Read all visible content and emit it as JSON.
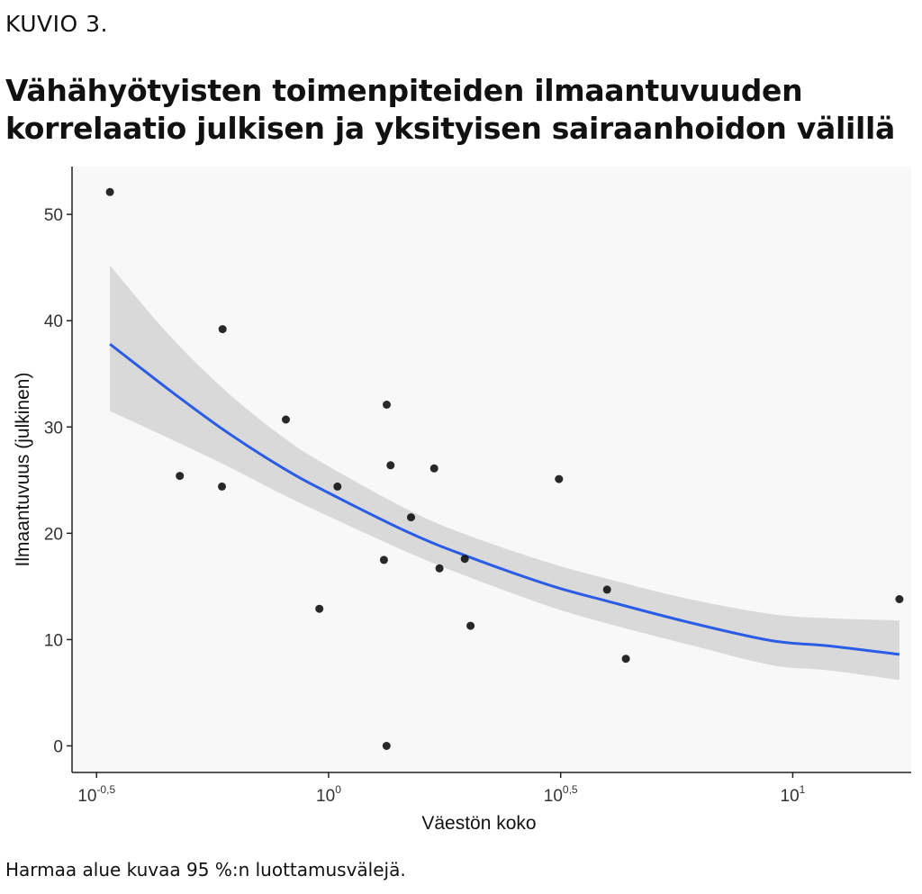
{
  "header": {
    "kicker": "KUVIO 3.",
    "title": "Vähähyötyisten toimenpiteiden ilmaantuvuuden korrelaatio julkisen ja yksityisen sairaanhoidon välillä"
  },
  "footer": {
    "note": "Harmaa alue kuvaa 95 %:n luottamusvälejä."
  },
  "colors": {
    "points": "#111111",
    "trend": "#2b5ce6",
    "band": "#d9d9d9",
    "panel": "#f8f8f8"
  },
  "chart_data": {
    "type": "scatter",
    "xlabel": "Väestön koko",
    "ylabel": "Ilmaantuvuus (julkinen)",
    "xscale": "log10",
    "xlim": [
      0.28,
      18.0
    ],
    "ylim": [
      -2.5,
      54.5
    ],
    "xticks": [
      {
        "value": 0.3162,
        "base": "10",
        "exp": "-0,5"
      },
      {
        "value": 1.0,
        "base": "10",
        "exp": "0"
      },
      {
        "value": 3.1623,
        "base": "10",
        "exp": "0,5"
      },
      {
        "value": 10.0,
        "base": "10",
        "exp": "1"
      }
    ],
    "yticks": [
      0,
      10,
      20,
      30,
      40,
      50
    ],
    "grid": false,
    "points": [
      {
        "x": 0.338,
        "y": 52.1
      },
      {
        "x": 0.478,
        "y": 25.4
      },
      {
        "x": 0.591,
        "y": 39.2
      },
      {
        "x": 0.589,
        "y": 24.4
      },
      {
        "x": 0.809,
        "y": 30.7
      },
      {
        "x": 0.955,
        "y": 12.9
      },
      {
        "x": 1.045,
        "y": 24.4
      },
      {
        "x": 1.316,
        "y": 17.5
      },
      {
        "x": 1.334,
        "y": 32.1
      },
      {
        "x": 1.36,
        "y": 26.4
      },
      {
        "x": 1.333,
        "y": 0.0
      },
      {
        "x": 1.505,
        "y": 21.5
      },
      {
        "x": 1.688,
        "y": 26.1
      },
      {
        "x": 1.733,
        "y": 16.7
      },
      {
        "x": 1.965,
        "y": 17.6
      },
      {
        "x": 2.022,
        "y": 11.3
      },
      {
        "x": 3.135,
        "y": 25.1
      },
      {
        "x": 3.981,
        "y": 14.7
      },
      {
        "x": 4.369,
        "y": 8.2
      },
      {
        "x": 16.98,
        "y": 13.8
      }
    ],
    "trend": {
      "x": [
        0.338,
        0.45,
        0.6,
        0.8,
        1.0,
        1.5,
        2.0,
        3.0,
        4.0,
        6.0,
        9.0,
        12.0,
        16.98
      ],
      "y": [
        37.8,
        33.6,
        29.6,
        26.1,
        23.8,
        20.0,
        17.8,
        15.1,
        13.6,
        11.6,
        9.9,
        9.4,
        8.6
      ],
      "lower": [
        31.5,
        29.0,
        26.4,
        23.6,
        21.6,
        18.1,
        15.9,
        13.1,
        11.5,
        9.5,
        7.6,
        7.1,
        6.2
      ],
      "upper": [
        45.2,
        38.8,
        33.4,
        29.0,
        26.3,
        22.1,
        19.8,
        17.2,
        15.7,
        13.8,
        12.4,
        12.0,
        11.8
      ]
    }
  }
}
